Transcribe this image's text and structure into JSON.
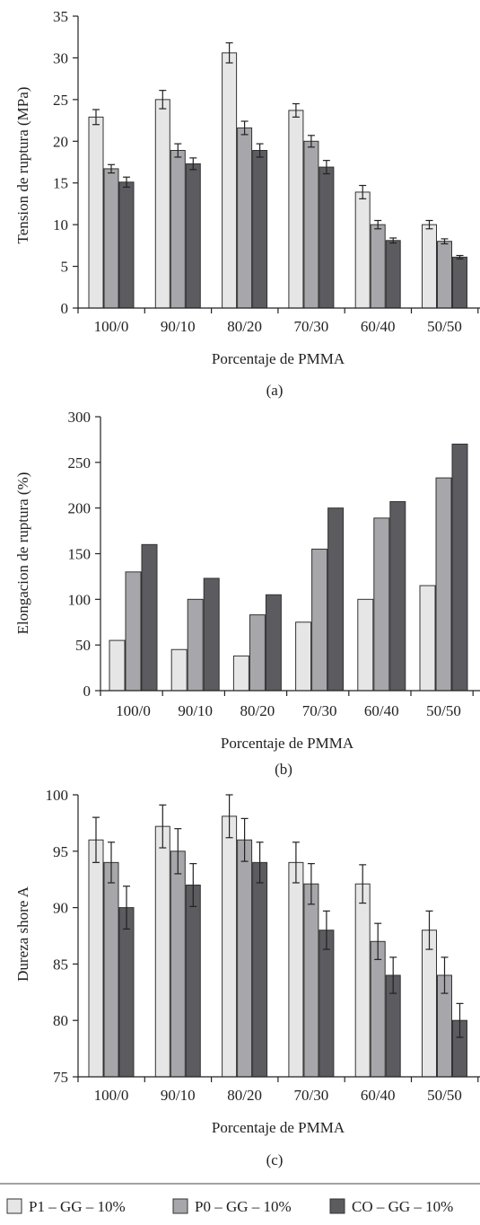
{
  "series_styles": [
    {
      "fill": "#e6e6e6"
    },
    {
      "fill": "#a7a7ab"
    },
    {
      "fill": "#5b5b60"
    }
  ],
  "legend": {
    "items": [
      "P1 – GG – 10%",
      "P0 – GG – 10%",
      "CO – GG – 10%"
    ]
  },
  "chart_data": [
    {
      "type": "bar",
      "panel_label": "(a)",
      "xlabel": "Porcentaje de PMMA",
      "ylabel": "Tension de ruptura (MPa)",
      "categories": [
        "100/0",
        "90/10",
        "80/20",
        "70/30",
        "60/40",
        "50/50"
      ],
      "ylim": [
        0,
        35
      ],
      "yticks": [
        0,
        5,
        10,
        15,
        20,
        25,
        30,
        35
      ],
      "error_bars": true,
      "series": [
        {
          "name": "P1 – GG – 10%",
          "values": [
            22.9,
            25.0,
            30.6,
            23.7,
            13.9,
            10.0
          ],
          "errors": [
            0.9,
            1.1,
            1.2,
            0.8,
            0.8,
            0.5
          ]
        },
        {
          "name": "P0 – GG – 10%",
          "values": [
            16.7,
            18.9,
            21.6,
            20.0,
            10.0,
            8.0
          ],
          "errors": [
            0.5,
            0.8,
            0.8,
            0.7,
            0.5,
            0.3
          ]
        },
        {
          "name": "CO – GG – 10%",
          "values": [
            15.1,
            17.3,
            18.9,
            16.9,
            8.1,
            6.1
          ],
          "errors": [
            0.6,
            0.7,
            0.8,
            0.8,
            0.3,
            0.2
          ]
        }
      ]
    },
    {
      "type": "bar",
      "panel_label": "(b)",
      "xlabel": "Porcentaje de PMMA",
      "ylabel": "Elongacion de ruptura (%)",
      "categories": [
        "100/0",
        "90/10",
        "80/20",
        "70/30",
        "60/40",
        "50/50"
      ],
      "ylim": [
        0,
        300
      ],
      "yticks": [
        0,
        50,
        100,
        150,
        200,
        250,
        300
      ],
      "error_bars": false,
      "series": [
        {
          "name": "P1 – GG – 10%",
          "values": [
            55,
            45,
            38,
            75,
            100,
            115
          ]
        },
        {
          "name": "P0 – GG – 10%",
          "values": [
            130,
            100,
            83,
            155,
            189,
            233
          ]
        },
        {
          "name": "CO – GG – 10%",
          "values": [
            160,
            123,
            105,
            200,
            207,
            270
          ]
        }
      ]
    },
    {
      "type": "bar",
      "panel_label": "(c)",
      "xlabel": "Porcentaje de PMMA",
      "ylabel": "Dureza shore A",
      "categories": [
        "100/0",
        "90/10",
        "80/20",
        "70/30",
        "60/40",
        "50/50"
      ],
      "ylim": [
        75,
        100
      ],
      "yticks": [
        75,
        80,
        85,
        90,
        95,
        100
      ],
      "error_bars": true,
      "series": [
        {
          "name": "P1 – GG – 10%",
          "values": [
            96,
            97.2,
            98.1,
            94,
            92.1,
            88
          ],
          "errors": [
            2.0,
            1.9,
            1.9,
            1.8,
            1.7,
            1.7
          ]
        },
        {
          "name": "P0 – GG – 10%",
          "values": [
            94,
            95,
            96,
            92.1,
            87,
            84
          ],
          "errors": [
            1.8,
            2.0,
            1.9,
            1.8,
            1.6,
            1.6
          ]
        },
        {
          "name": "CO – GG – 10%",
          "values": [
            90,
            92,
            94,
            88,
            84,
            80
          ],
          "errors": [
            1.9,
            1.9,
            1.8,
            1.7,
            1.6,
            1.5
          ]
        }
      ]
    }
  ]
}
